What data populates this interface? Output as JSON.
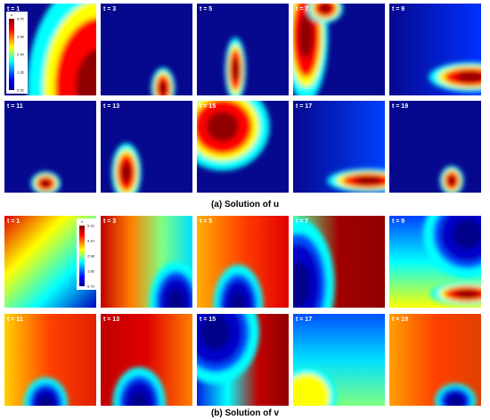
{
  "figure": {
    "panels_u": [
      "t = 1",
      "t = 3",
      "t = 5",
      "t = 7",
      "t = 9",
      "t = 11",
      "t = 13",
      "t = 15",
      "t = 17",
      "t = 19"
    ],
    "panels_v": [
      "t = 1",
      "t = 3",
      "t = 5",
      "t = 7",
      "t = 9",
      "t = 11",
      "t = 13",
      "t = 15",
      "t = 17",
      "t = 19"
    ],
    "colorbar_u": {
      "title": "u",
      "labels": [
        "4.75",
        "3.58",
        "2.45",
        "1.35",
        "0.25"
      ]
    },
    "colorbar_v": {
      "title": "v",
      "labels": [
        "5.22",
        "4.10",
        "2.98",
        "1.85",
        "0.73"
      ]
    },
    "caption_u": "(a) Solution of u",
    "caption_v": "(b) Solution of v"
  }
}
